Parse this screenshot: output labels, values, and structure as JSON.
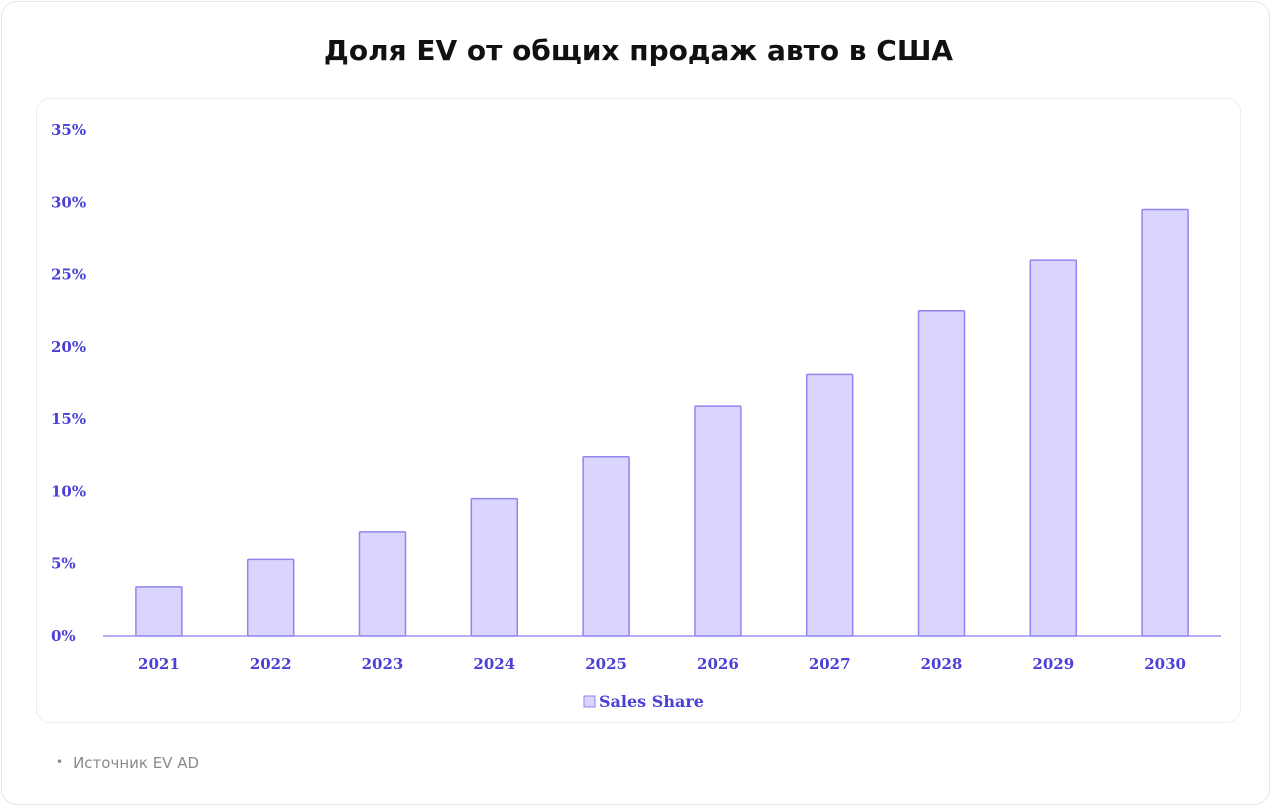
{
  "title": "Доля EV от общих продаж авто в США",
  "source_text": "Источник EV AD",
  "colors": {
    "bar_fill": "#d9d5ff",
    "bar_stroke": "#8f85ee",
    "axis": "#9b93f0",
    "text": "#4a3fd6"
  },
  "chart_data": {
    "type": "bar",
    "title": "",
    "xlabel": "",
    "ylabel": "",
    "categories": [
      "2021",
      "2022",
      "2023",
      "2024",
      "2025",
      "2026",
      "2027",
      "2028",
      "2029",
      "2030"
    ],
    "series": [
      {
        "name": "Sales Share",
        "values": [
          3.4,
          5.3,
          7.2,
          9.5,
          12.4,
          15.9,
          18.1,
          22.5,
          26.0,
          29.5
        ]
      }
    ],
    "ylim": [
      0,
      35
    ],
    "yticks": [
      "0%",
      "5%",
      "10%",
      "15%",
      "20%",
      "25%",
      "30%",
      "35%"
    ],
    "ytick_values": [
      0,
      5,
      10,
      15,
      20,
      25,
      30,
      35
    ],
    "grid": false,
    "legend": "bottom-center"
  }
}
